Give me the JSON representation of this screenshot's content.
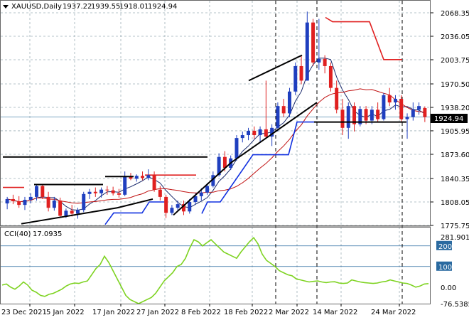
{
  "header": {
    "symbol": "XAUUSD,Daily",
    "open": "1937.22",
    "high": "1939.55",
    "low": "1918.01",
    "close": "1924.94"
  },
  "cci_header": {
    "label": "CCI(40)",
    "value": "17.0935"
  },
  "current_price": "1924.94",
  "colors": {
    "bull": "#1f3fbf",
    "bear": "#e02020",
    "grid": "#9fb0b8",
    "cci": "#7ed321",
    "trendline": "#000000",
    "support_red": "#e02020",
    "support_blue": "#1030e0",
    "price_box": "#000000"
  },
  "chart_data": [
    {
      "type": "candlestick",
      "title": "XAUUSD,Daily",
      "y_ticks": [
        "2068.35",
        "2036.05",
        "2003.75",
        "1970.50",
        "1938.20",
        "1905.95",
        "1873.60",
        "1840.35",
        "1808.05",
        "1775.75"
      ],
      "ylim": [
        1775.75,
        2068.35
      ],
      "x_ticks": [
        "23 Dec 2021",
        "5 Jan 2022",
        "17 Jan 2022",
        "27 Jan 2022",
        "8 Feb 2022",
        "18 Feb 2022",
        "2 Mar 2022",
        "14 Mar 2022",
        "24 Mar 2022"
      ],
      "candles": [
        [
          1806,
          1815,
          1798,
          1812
        ],
        [
          1812,
          1818,
          1805,
          1809
        ],
        [
          1809,
          1816,
          1800,
          1804
        ],
        [
          1804,
          1815,
          1797,
          1811
        ],
        [
          1811,
          1820,
          1806,
          1815
        ],
        [
          1815,
          1832,
          1810,
          1830
        ],
        [
          1830,
          1832,
          1812,
          1815
        ],
        [
          1815,
          1822,
          1795,
          1800
        ],
        [
          1800,
          1815,
          1796,
          1810
        ],
        [
          1810,
          1814,
          1786,
          1789
        ],
        [
          1789,
          1799,
          1786,
          1796
        ],
        [
          1796,
          1804,
          1788,
          1792
        ],
        [
          1792,
          1800,
          1785,
          1797
        ],
        [
          1797,
          1822,
          1794,
          1819
        ],
        [
          1819,
          1826,
          1812,
          1822
        ],
        [
          1822,
          1828,
          1815,
          1820
        ],
        [
          1820,
          1828,
          1814,
          1825
        ],
        [
          1825,
          1830,
          1818,
          1824
        ],
        [
          1824,
          1829,
          1817,
          1820
        ],
        [
          1820,
          1826,
          1814,
          1818
        ],
        [
          1818,
          1850,
          1816,
          1843
        ],
        [
          1843,
          1848,
          1838,
          1840
        ],
        [
          1840,
          1846,
          1836,
          1844
        ],
        [
          1844,
          1850,
          1838,
          1841
        ],
        [
          1841,
          1853,
          1838,
          1845
        ],
        [
          1845,
          1850,
          1822,
          1825
        ],
        [
          1825,
          1830,
          1810,
          1815
        ],
        [
          1815,
          1818,
          1786,
          1793
        ],
        [
          1793,
          1804,
          1790,
          1800
        ],
        [
          1800,
          1810,
          1796,
          1805
        ],
        [
          1805,
          1810,
          1790,
          1795
        ],
        [
          1795,
          1812,
          1792,
          1808
        ],
        [
          1808,
          1820,
          1804,
          1816
        ],
        [
          1816,
          1827,
          1810,
          1821
        ],
        [
          1821,
          1834,
          1818,
          1830
        ],
        [
          1830,
          1850,
          1828,
          1845
        ],
        [
          1845,
          1875,
          1843,
          1870
        ],
        [
          1870,
          1878,
          1850,
          1855
        ],
        [
          1855,
          1872,
          1852,
          1868
        ],
        [
          1868,
          1900,
          1865,
          1896
        ],
        [
          1896,
          1905,
          1890,
          1900
        ],
        [
          1900,
          1910,
          1893,
          1906
        ],
        [
          1906,
          1912,
          1895,
          1900
        ],
        [
          1900,
          1912,
          1890,
          1908
        ],
        [
          1908,
          1975,
          1895,
          1898
        ],
        [
          1898,
          1915,
          1885,
          1910
        ],
        [
          1910,
          1945,
          1905,
          1940
        ],
        [
          1940,
          1950,
          1925,
          1930
        ],
        [
          1930,
          1965,
          1925,
          1960
        ],
        [
          1960,
          2000,
          1955,
          1995
        ],
        [
          1995,
          2010,
          1970,
          1975
        ],
        [
          1975,
          2070,
          1975,
          2055
        ],
        [
          2055,
          2060,
          1995,
          2000
        ],
        [
          2000,
          2060,
          1990,
          2005
        ],
        [
          2005,
          2010,
          1985,
          1995
        ],
        [
          1995,
          2000,
          1960,
          1965
        ],
        [
          1965,
          1975,
          1930,
          1935
        ],
        [
          1935,
          1950,
          1900,
          1910
        ],
        [
          1910,
          1945,
          1895,
          1940
        ],
        [
          1940,
          1945,
          1905,
          1915
        ],
        [
          1915,
          1940,
          1912,
          1936
        ],
        [
          1936,
          1940,
          1915,
          1920
        ],
        [
          1920,
          1940,
          1915,
          1935
        ],
        [
          1935,
          1945,
          1918,
          1922
        ],
        [
          1922,
          1958,
          1920,
          1955
        ],
        [
          1955,
          1965,
          1940,
          1945
        ],
        [
          1945,
          1955,
          1935,
          1950
        ],
        [
          1950,
          1955,
          1918,
          1922
        ],
        [
          1922,
          1930,
          1895,
          1925
        ],
        [
          1925,
          1945,
          1920,
          1935
        ],
        [
          1935,
          1945,
          1928,
          1940
        ],
        [
          1937.22,
          1939.55,
          1918.01,
          1924.94
        ]
      ]
    },
    {
      "type": "line",
      "title": "CCI(40) 17.0935",
      "y_ticks": [
        "281.9018",
        "200",
        "100",
        "0.00",
        "-76.5385"
      ],
      "ylim": [
        -76.5385,
        281.9018
      ],
      "levels": [
        200,
        100
      ],
      "values": [
        10,
        15,
        0,
        -10,
        5,
        25,
        10,
        -15,
        -25,
        -40,
        -45,
        -35,
        -30,
        -20,
        -10,
        5,
        15,
        20,
        18,
        25,
        30,
        60,
        90,
        110,
        150,
        120,
        80,
        40,
        0,
        -40,
        -60,
        -70,
        -80,
        -70,
        -60,
        -50,
        -30,
        0,
        30,
        50,
        70,
        100,
        110,
        140,
        190,
        230,
        220,
        200,
        215,
        230,
        210,
        190,
        170,
        160,
        150,
        140,
        170,
        195,
        220,
        240,
        210,
        160,
        130,
        115,
        100,
        80,
        70,
        60,
        55,
        40,
        35,
        30,
        25,
        28,
        30,
        25,
        22,
        25,
        26,
        20,
        18,
        20,
        35,
        30,
        25,
        22,
        20,
        18,
        20,
        25,
        28,
        35,
        30,
        25,
        20,
        18,
        10,
        0,
        5,
        15,
        17.09
      ]
    }
  ]
}
